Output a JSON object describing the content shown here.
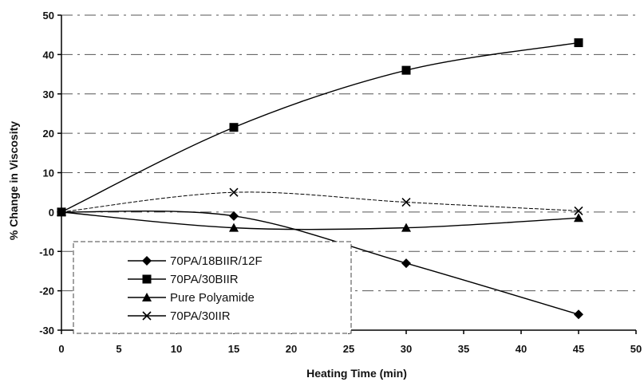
{
  "chart_data": {
    "type": "line",
    "title": "",
    "xlabel": "Heating Time (min)",
    "ylabel": "% Change in Viscosity",
    "xlim": [
      0,
      50
    ],
    "ylim": [
      -30,
      50
    ],
    "xticks": [
      "0",
      "5",
      "10",
      "15",
      "20",
      "25",
      "30",
      "35",
      "40",
      "45",
      "50"
    ],
    "yticks": [
      "50",
      "40",
      "30",
      "20",
      "10",
      "0",
      "-10",
      "-20",
      "-30"
    ],
    "grid": "horizontal dashed",
    "legend_position": "bottom-left",
    "x": [
      0,
      15,
      30,
      45
    ],
    "series": [
      {
        "name": "70PA/18BIIR/12F",
        "marker": "diamond",
        "values": [
          0,
          -1,
          -13,
          -26
        ]
      },
      {
        "name": "70PA/30BIIR",
        "marker": "square",
        "values": [
          0,
          21.5,
          36,
          43
        ]
      },
      {
        "name": "Pure Polyamide",
        "marker": "triangle",
        "values": [
          0,
          -4,
          -4,
          -1.5
        ]
      },
      {
        "name": "70PA/30IIR",
        "marker": "x",
        "values": [
          0,
          5,
          2.5,
          0.3
        ]
      }
    ]
  }
}
